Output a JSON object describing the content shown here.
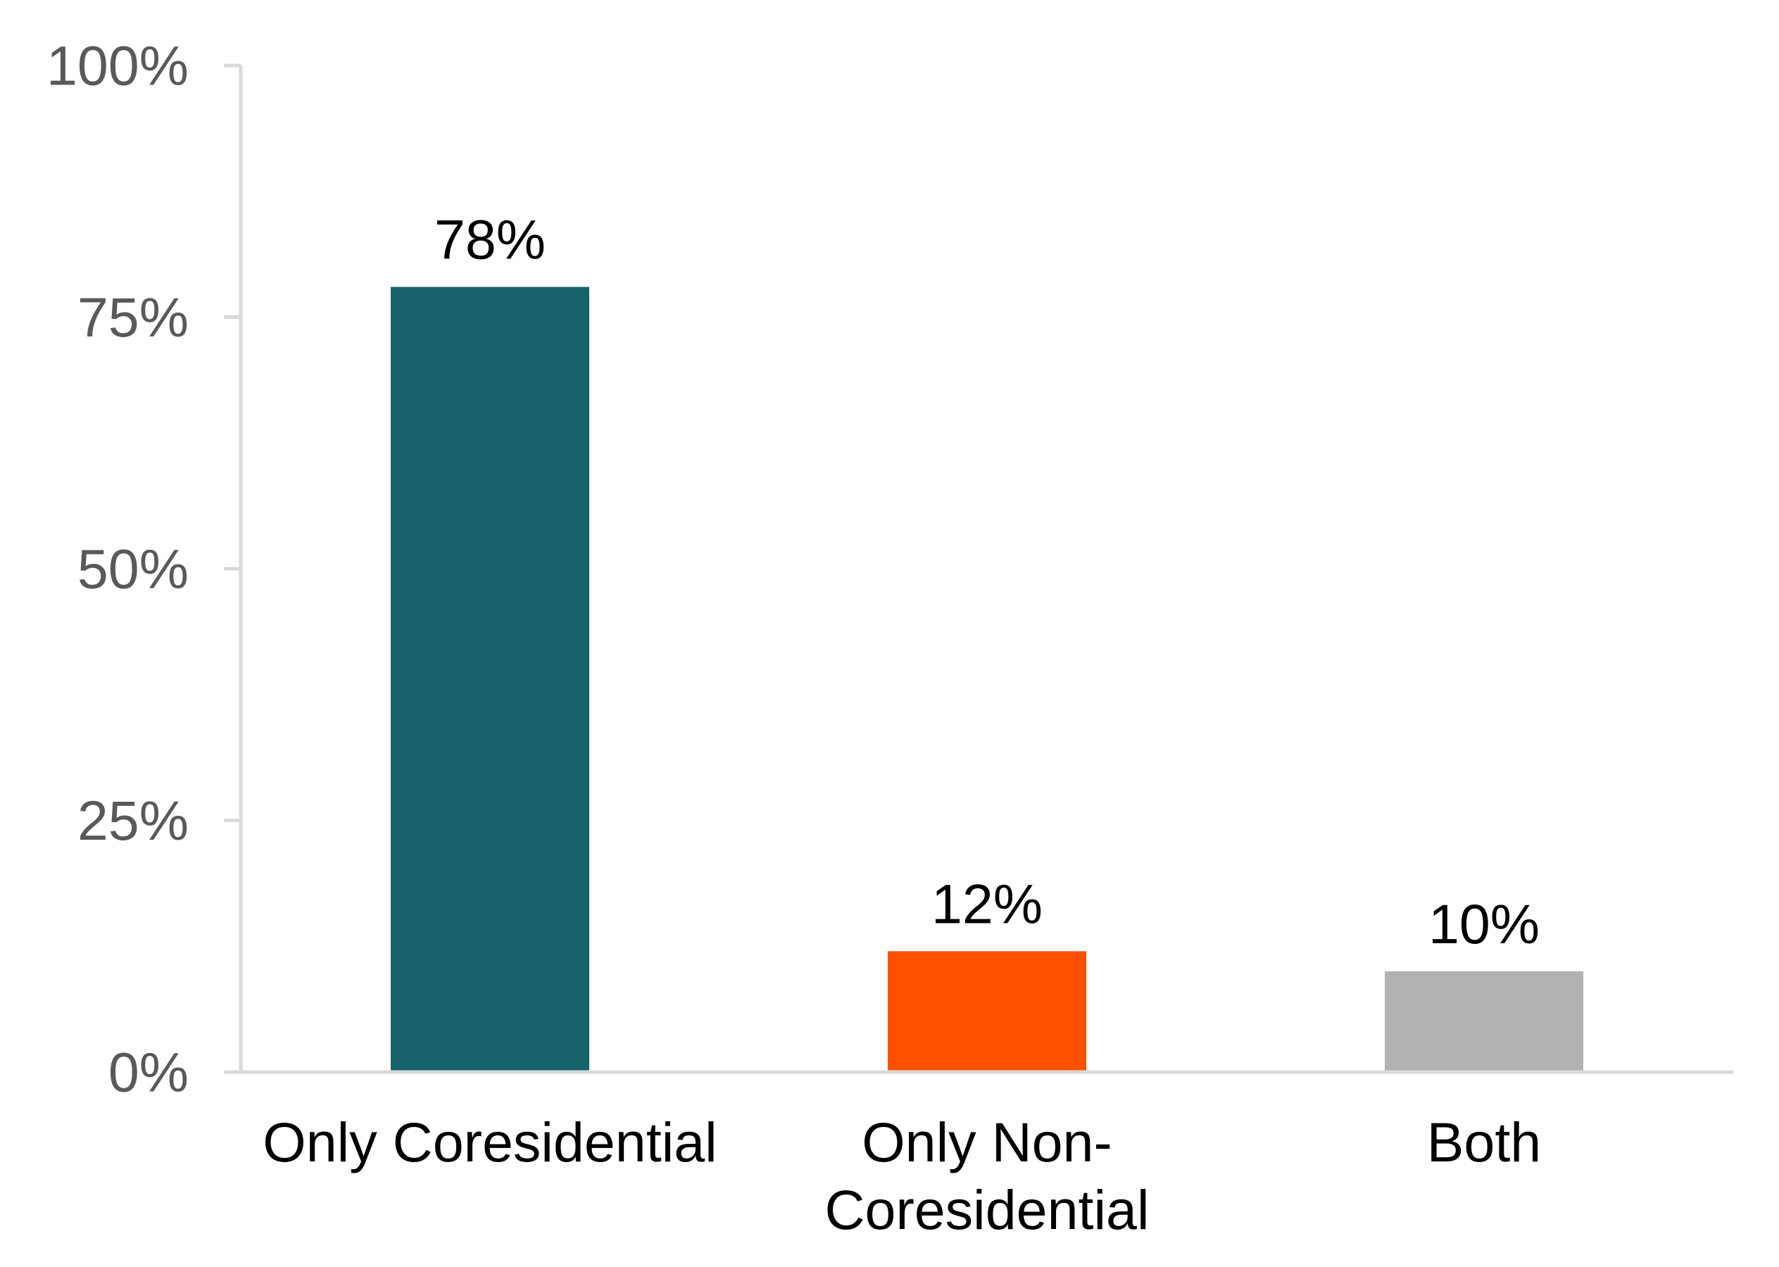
{
  "chart_data": {
    "type": "bar",
    "categories": [
      [
        "Only Coresidential"
      ],
      [
        "Only Non-",
        "Coresidential"
      ],
      [
        "Both"
      ]
    ],
    "values": [
      78,
      12,
      10
    ],
    "value_labels": [
      "78%",
      "12%",
      "10%"
    ],
    "colors": [
      "#17636B",
      "#FF5000",
      "#B2B2B2"
    ],
    "ylim": [
      0,
      100
    ],
    "yticks": [
      0,
      25,
      50,
      75,
      100
    ],
    "ytick_labels": [
      "0%",
      "25%",
      "50%",
      "75%",
      "100%"
    ],
    "title": "",
    "xlabel": "",
    "ylabel": "",
    "grid": false,
    "legend": "none"
  },
  "style": {
    "axis_color": "#D9D9D9",
    "tick_text_color": "#595959",
    "label_text_color": "#000000"
  }
}
